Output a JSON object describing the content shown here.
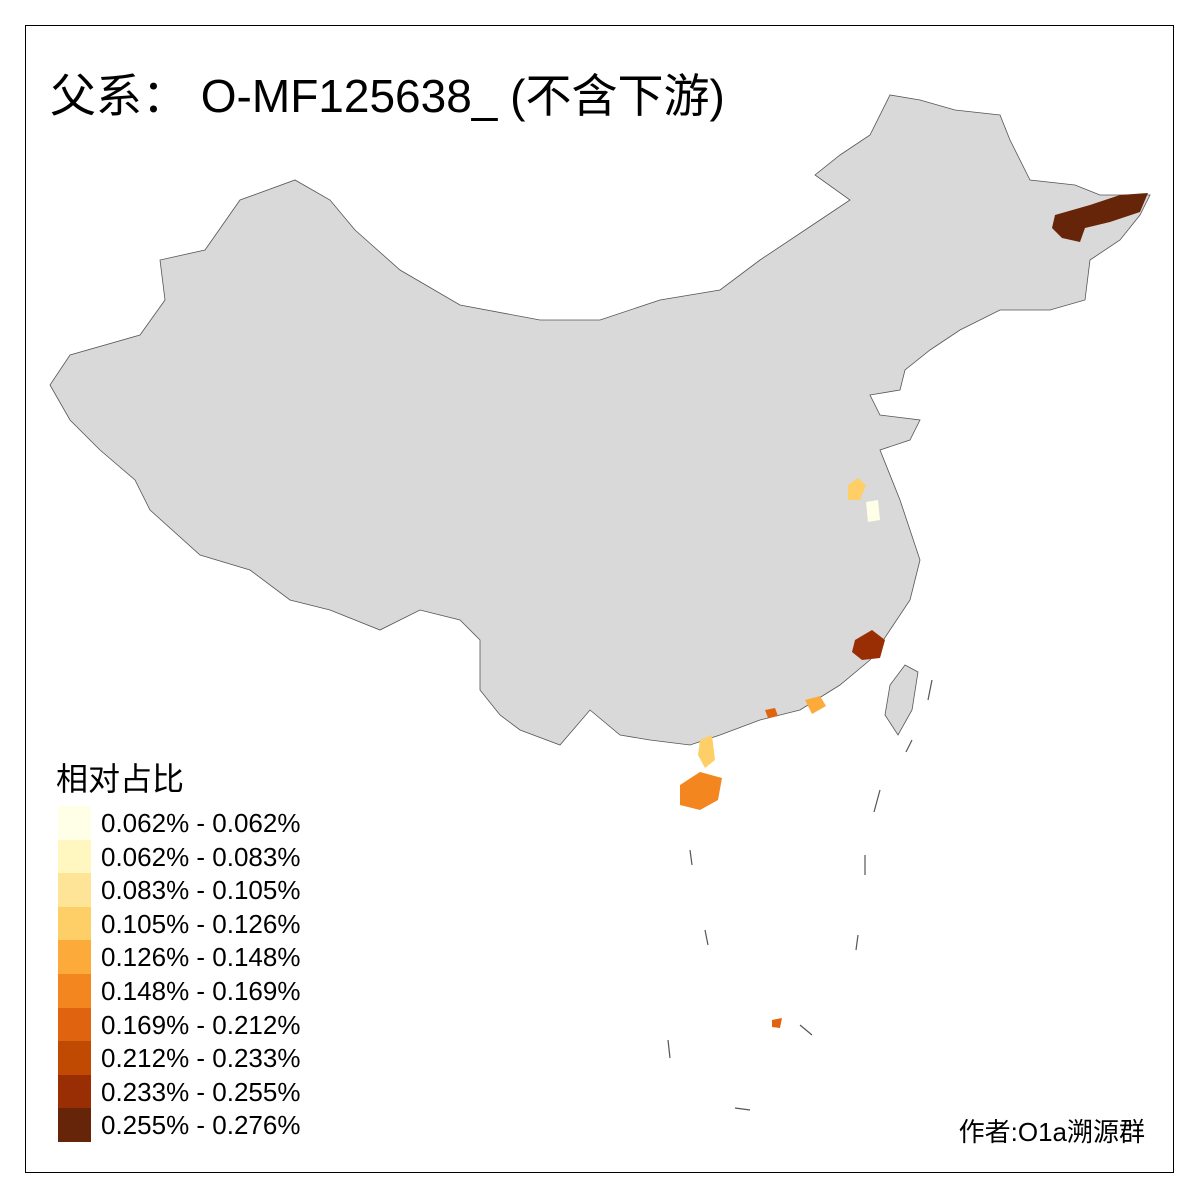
{
  "title": "父系： O-MF125638_ (不含下游)",
  "legend": {
    "title": "相对占比",
    "items": [
      {
        "label": "0.062% - 0.062%",
        "color": "#fffee6"
      },
      {
        "label": "0.062% - 0.083%",
        "color": "#fff6c0"
      },
      {
        "label": "0.083% - 0.105%",
        "color": "#fee496"
      },
      {
        "label": "0.105% - 0.126%",
        "color": "#fecf66"
      },
      {
        "label": "0.126% - 0.148%",
        "color": "#fcab3a"
      },
      {
        "label": "0.148% - 0.169%",
        "color": "#f3861f"
      },
      {
        "label": "0.169% - 0.212%",
        "color": "#e0640f"
      },
      {
        "label": "0.212% - 0.233%",
        "color": "#c14a03"
      },
      {
        "label": "0.233% - 0.255%",
        "color": "#992e04"
      },
      {
        "label": "0.255% - 0.276%",
        "color": "#662508"
      }
    ]
  },
  "map": {
    "base_color": "#d9d9d9",
    "border_color": "#555555"
  },
  "author": "作者:O1a溯源群"
}
